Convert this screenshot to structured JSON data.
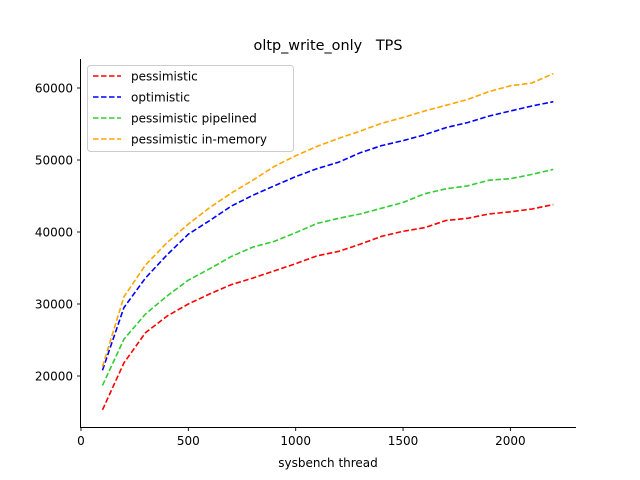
{
  "chart_data": {
    "type": "line",
    "title": "oltp_write_only   TPS",
    "xlabel": "sysbench thread",
    "ylabel": "",
    "xlim": [
      0,
      2300
    ],
    "ylim": [
      13000,
      64000
    ],
    "xticks": [
      0,
      500,
      1000,
      1500,
      2000
    ],
    "xtick_labels": [
      "0",
      "500",
      "1000",
      "1500",
      "2000"
    ],
    "yticks": [
      20000,
      30000,
      40000,
      50000,
      60000
    ],
    "ytick_labels": [
      "20000",
      "30000",
      "40000",
      "50000",
      "60000"
    ],
    "grid": false,
    "legend_position": "upper left",
    "line_style": "dashed",
    "x": [
      100,
      200,
      300,
      400,
      500,
      600,
      700,
      800,
      900,
      1000,
      1100,
      1200,
      1300,
      1400,
      1500,
      1600,
      1700,
      1800,
      1900,
      2000,
      2100,
      2200
    ],
    "series": [
      {
        "name": "pessimistic",
        "color": "#ff0000",
        "values": [
          15300,
          21800,
          26000,
          28300,
          30000,
          31400,
          32700,
          33600,
          34600,
          35600,
          36700,
          37300,
          38300,
          39400,
          40100,
          40600,
          41600,
          41900,
          42500,
          42800,
          43200,
          43800
        ]
      },
      {
        "name": "optimistic",
        "color": "#0000ff",
        "values": [
          20800,
          29500,
          33600,
          36800,
          39700,
          41600,
          43600,
          45100,
          46400,
          47700,
          48800,
          49700,
          51000,
          52000,
          52700,
          53500,
          54500,
          55200,
          56100,
          56800,
          57500,
          58100
        ]
      },
      {
        "name": "pessimistic pipelined",
        "color": "#32cd32",
        "values": [
          18700,
          25100,
          28600,
          31100,
          33300,
          34900,
          36600,
          37900,
          38700,
          39900,
          41200,
          41900,
          42500,
          43300,
          44100,
          45300,
          46000,
          46400,
          47200,
          47400,
          48000,
          48700
        ]
      },
      {
        "name": "pessimistic in-memory",
        "color": "#ffa500",
        "values": [
          21300,
          31000,
          35400,
          38500,
          41100,
          43400,
          45400,
          47200,
          49100,
          50600,
          51900,
          53000,
          54000,
          55100,
          55900,
          56800,
          57600,
          58400,
          59500,
          60300,
          60700,
          62000
        ]
      }
    ]
  }
}
